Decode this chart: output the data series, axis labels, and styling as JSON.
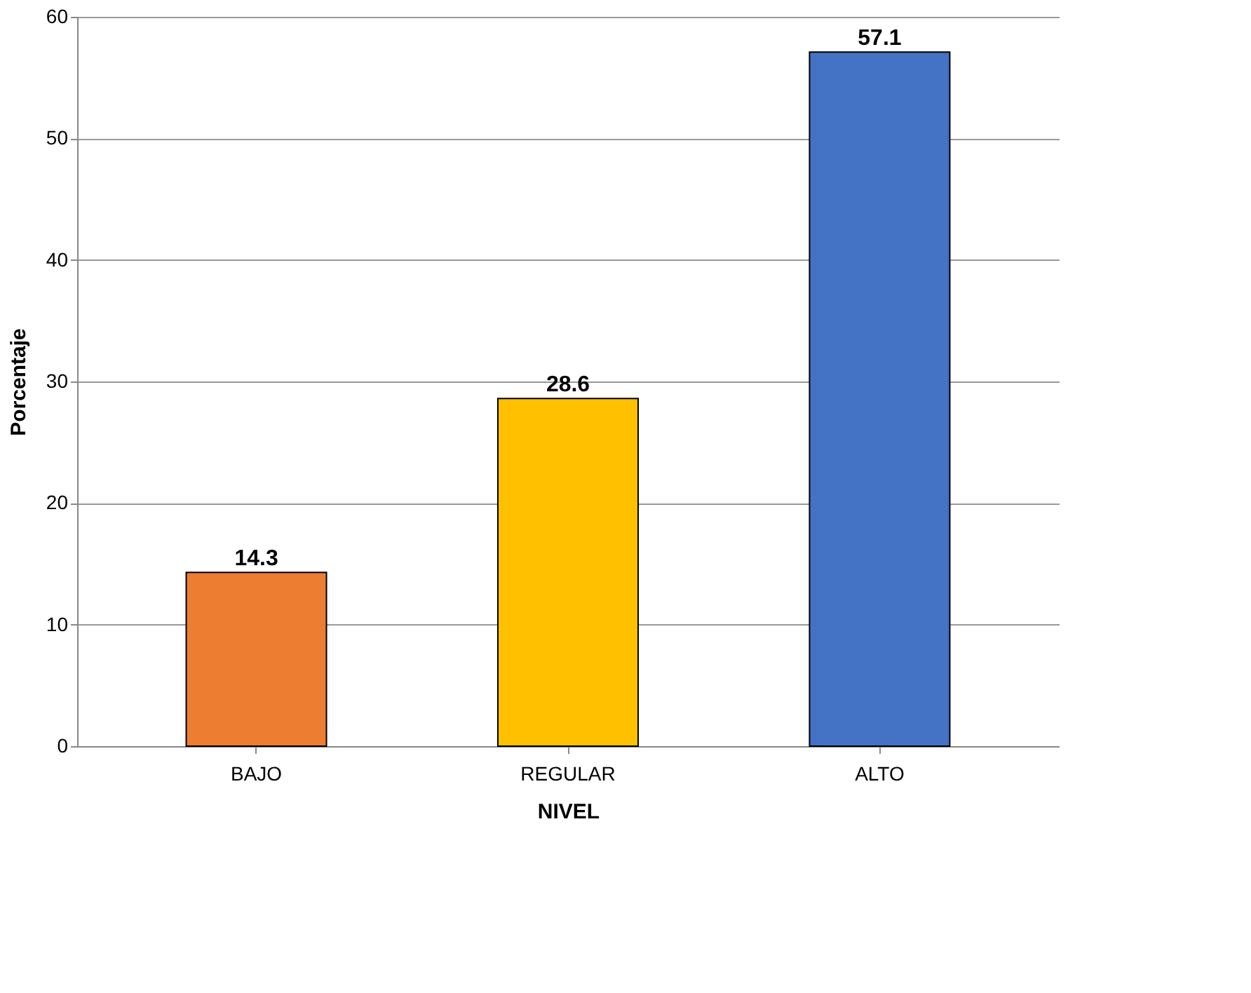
{
  "chart_data": {
    "type": "bar",
    "categories": [
      "BAJO",
      "REGULAR",
      "ALTO"
    ],
    "values": [
      14.3,
      28.6,
      57.1
    ],
    "colors": [
      "#ed7d31",
      "#ffc000",
      "#4472c4"
    ],
    "xlabel": "NIVEL",
    "ylabel": "Porcentaje",
    "ylim": [
      0,
      60
    ],
    "yticks": [
      0,
      10,
      20,
      30,
      40,
      50,
      60
    ],
    "grid": "y",
    "data_labels": true
  }
}
